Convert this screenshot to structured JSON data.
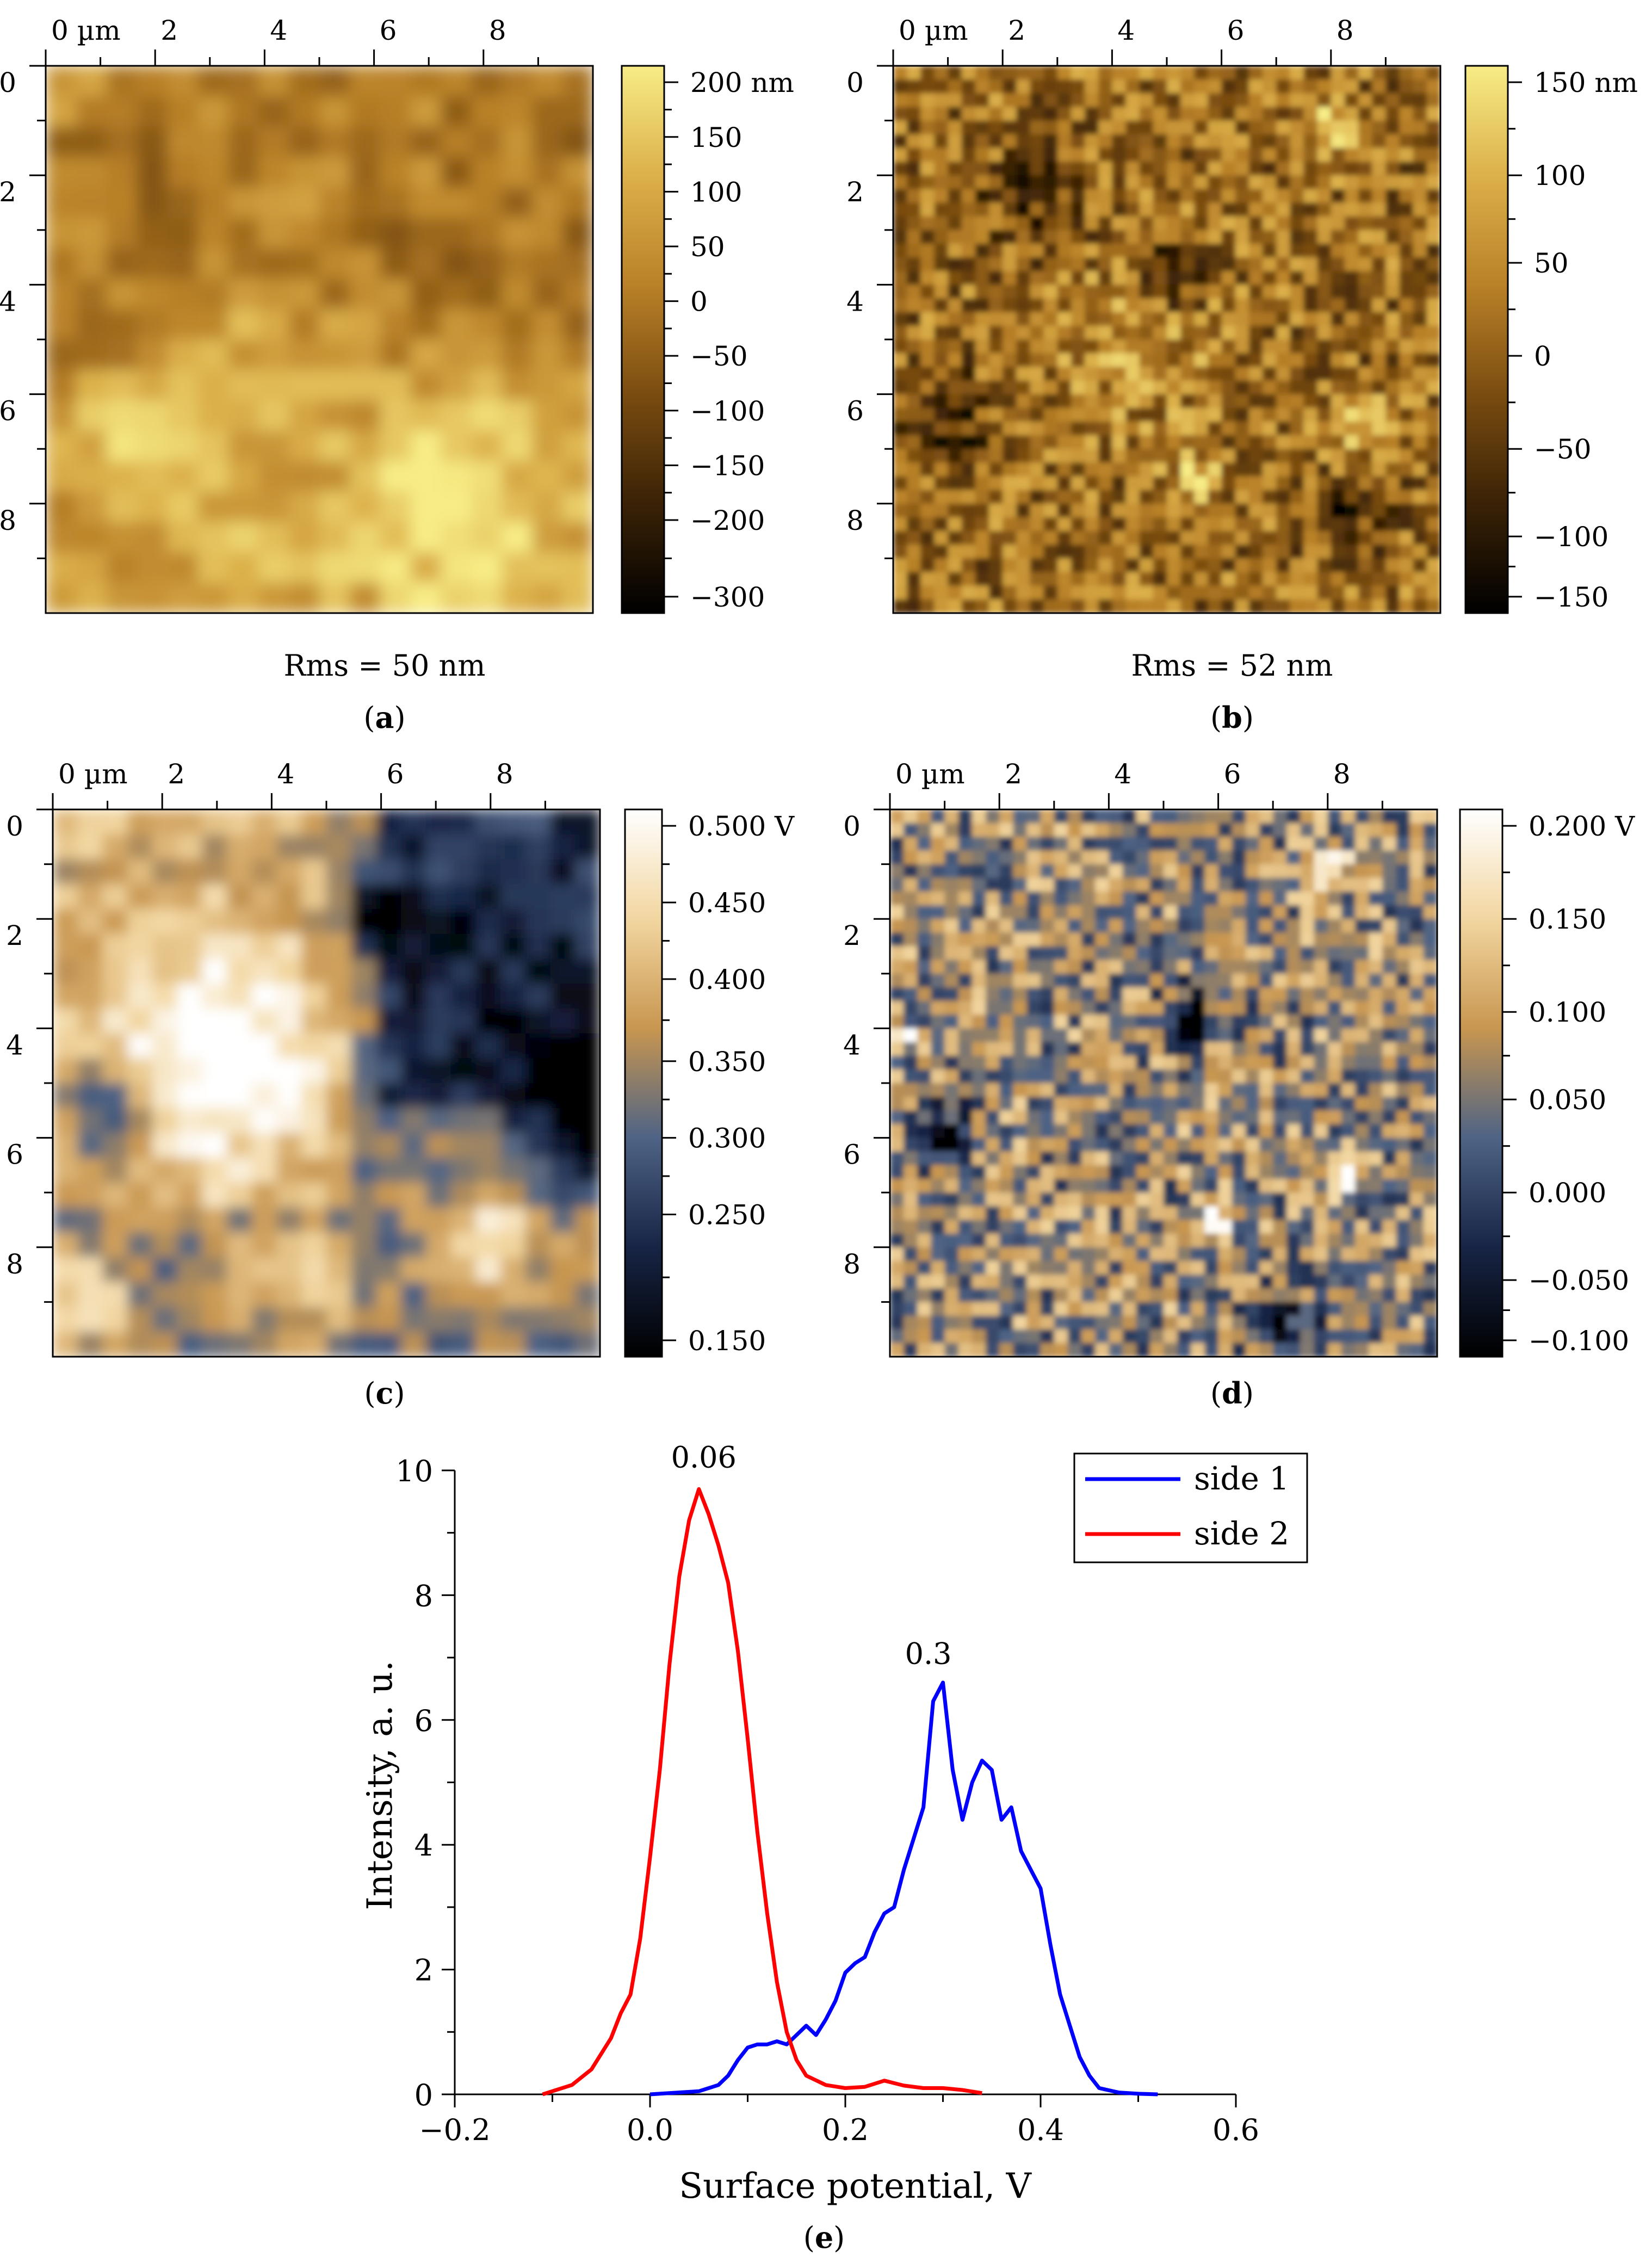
{
  "panels": [
    {
      "id": "a",
      "letter": "a",
      "caption_label": "(a)",
      "kind": "topography",
      "x_axis_ticks": [
        "0 µm",
        "2",
        "4",
        "6",
        "8"
      ],
      "y_axis_ticks": [
        "0",
        "2",
        "4",
        "6",
        "8"
      ],
      "colorbar_ticks": [
        "200 nm",
        "150",
        "100",
        "50",
        "0",
        "−50",
        "−100",
        "−150",
        "−200",
        "−300"
      ],
      "colormap": [
        "#000000",
        "#3a2206",
        "#7a4c10",
        "#b98128",
        "#dcb04a",
        "#f7ec86"
      ],
      "rms": "Rms = 50 nm"
    },
    {
      "id": "b",
      "letter": "b",
      "caption_label": "(b)",
      "kind": "topography",
      "x_axis_ticks": [
        "0 µm",
        "2",
        "4",
        "6",
        "8"
      ],
      "y_axis_ticks": [
        "0",
        "2",
        "4",
        "6",
        "8"
      ],
      "colorbar_ticks": [
        "150 nm",
        "100",
        "50",
        "0",
        "−50",
        "−100",
        "−150"
      ],
      "colormap": [
        "#000000",
        "#3a2206",
        "#7a4c10",
        "#b98128",
        "#dcb04a",
        "#f7ec86"
      ],
      "rms": "Rms = 52 nm"
    },
    {
      "id": "c",
      "letter": "c",
      "caption_label": "(c)",
      "kind": "potential",
      "x_axis_ticks": [
        "0 µm",
        "2",
        "4",
        "6",
        "8"
      ],
      "y_axis_ticks": [
        "0",
        "2",
        "4",
        "6",
        "8"
      ],
      "colorbar_ticks": [
        "0.500 V",
        "0.450",
        "0.400",
        "0.350",
        "0.300",
        "0.250",
        "0.150"
      ],
      "colormap": [
        "#000000",
        "#172445",
        "#4e6385",
        "#c89650",
        "#f2d6a0",
        "#ffffff"
      ]
    },
    {
      "id": "d",
      "letter": "d",
      "caption_label": "(d)",
      "kind": "potential",
      "x_axis_ticks": [
        "0 µm",
        "2",
        "4",
        "6",
        "8"
      ],
      "y_axis_ticks": [
        "0",
        "2",
        "4",
        "6",
        "8"
      ],
      "colorbar_ticks": [
        "0.200 V",
        "0.150",
        "0.100",
        "0.050",
        "0.000",
        "−0.050",
        "−0.100"
      ],
      "colormap": [
        "#000000",
        "#172445",
        "#4e6385",
        "#c89650",
        "#f2d6a0",
        "#ffffff"
      ]
    }
  ],
  "chart_data": {
    "type": "line",
    "letter": "e",
    "caption_label": "(e)",
    "xlabel": "Surface potential, V",
    "ylabel": "Intensity, a. u.",
    "xlim": [
      -0.2,
      0.6
    ],
    "ylim": [
      0,
      10
    ],
    "x_ticks": [
      -0.2,
      0.0,
      0.2,
      0.4,
      0.6
    ],
    "x_tick_labels": [
      "−0.2",
      "0.0",
      "0.2",
      "0.4",
      "0.6"
    ],
    "y_ticks": [
      0,
      2,
      4,
      6,
      8,
      10
    ],
    "y_tick_labels": [
      "0",
      "2",
      "4",
      "6",
      "8",
      "10"
    ],
    "legend_position": "top-right",
    "series": [
      {
        "name": "side 1",
        "color": "#0000ff",
        "x": [
          0.0,
          0.05,
          0.07,
          0.08,
          0.09,
          0.1,
          0.11,
          0.12,
          0.13,
          0.14,
          0.15,
          0.16,
          0.17,
          0.18,
          0.19,
          0.2,
          0.21,
          0.22,
          0.23,
          0.24,
          0.25,
          0.26,
          0.27,
          0.28,
          0.29,
          0.3,
          0.31,
          0.32,
          0.33,
          0.34,
          0.35,
          0.36,
          0.37,
          0.38,
          0.39,
          0.4,
          0.41,
          0.42,
          0.43,
          0.44,
          0.45,
          0.46,
          0.48,
          0.5,
          0.52
        ],
        "y": [
          0,
          0.05,
          0.15,
          0.3,
          0.55,
          0.75,
          0.8,
          0.8,
          0.85,
          0.8,
          0.95,
          1.1,
          0.95,
          1.2,
          1.5,
          1.95,
          2.1,
          2.2,
          2.6,
          2.9,
          3.0,
          3.6,
          4.1,
          4.6,
          6.3,
          6.6,
          5.2,
          4.4,
          5.0,
          5.35,
          5.2,
          4.4,
          4.6,
          3.9,
          3.6,
          3.3,
          2.4,
          1.6,
          1.1,
          0.6,
          0.3,
          0.1,
          0.03,
          0.01,
          0
        ]
      },
      {
        "name": "side 2",
        "color": "#ff0000",
        "x": [
          -0.11,
          -0.08,
          -0.06,
          -0.04,
          -0.03,
          -0.02,
          -0.01,
          0.0,
          0.01,
          0.02,
          0.03,
          0.04,
          0.05,
          0.06,
          0.07,
          0.08,
          0.09,
          0.1,
          0.11,
          0.12,
          0.13,
          0.14,
          0.15,
          0.16,
          0.18,
          0.2,
          0.22,
          0.24,
          0.26,
          0.28,
          0.3,
          0.32,
          0.34
        ],
        "y": [
          0,
          0.15,
          0.4,
          0.9,
          1.3,
          1.6,
          2.5,
          3.8,
          5.2,
          6.9,
          8.3,
          9.2,
          9.7,
          9.3,
          8.8,
          8.2,
          7.1,
          5.7,
          4.2,
          2.9,
          1.8,
          1.0,
          0.55,
          0.3,
          0.15,
          0.1,
          0.12,
          0.22,
          0.14,
          0.1,
          0.1,
          0.07,
          0.02
        ]
      }
    ],
    "annotations": [
      {
        "text": "0.06",
        "x": 0.055,
        "y": 10.05
      },
      {
        "text": "0.3",
        "x": 0.285,
        "y": 6.9
      }
    ]
  }
}
